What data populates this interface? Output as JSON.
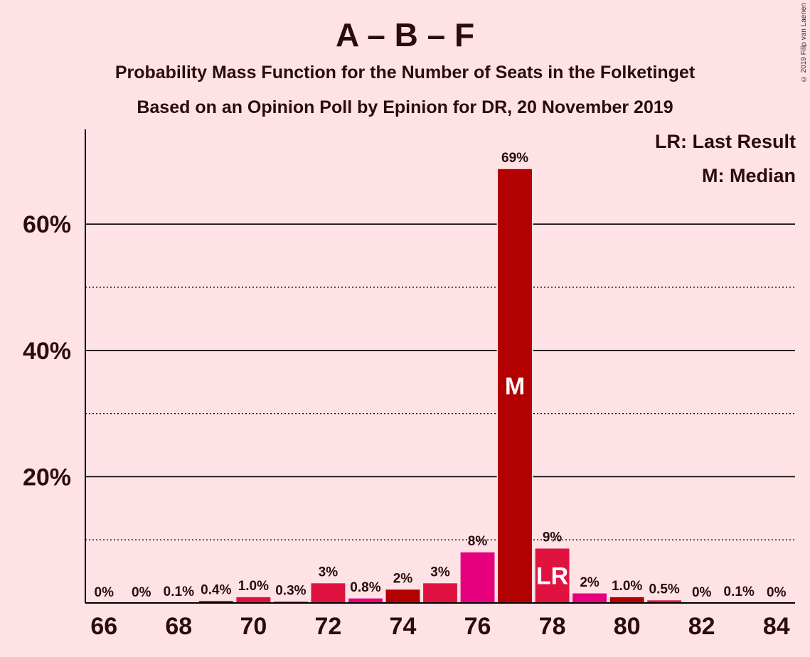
{
  "header": {
    "title": "A – B – F",
    "subtitle": "Probability Mass Function for the Number of Seats in the Folketinget",
    "subtitle2": "Based on an Opinion Poll by Epinion for DR, 20 November 2019",
    "copyright": "© 2019 Filip van Laenen"
  },
  "legend": {
    "last_result": "LR: Last Result",
    "median": "M: Median"
  },
  "colors": {
    "background": "#FFE2E5",
    "dark_red": "#B30000",
    "crimson": "#E0123F",
    "magenta": "#E6007E"
  },
  "chart_data": {
    "type": "bar",
    "title": "A – B – F",
    "xlabel": "",
    "ylabel": "",
    "x": [
      66,
      67,
      68,
      69,
      70,
      71,
      72,
      73,
      74,
      75,
      76,
      77,
      78,
      79,
      80,
      81,
      82,
      83,
      84
    ],
    "values": [
      0,
      0,
      0.1,
      0.4,
      1.0,
      0.3,
      3.2,
      0.8,
      2.2,
      3.2,
      8.1,
      68.8,
      8.7,
      1.6,
      1.0,
      0.5,
      0,
      0.1,
      0
    ],
    "value_labels": [
      "0%",
      "0%",
      "0.1%",
      "0.4%",
      "1.0%",
      "0.3%",
      "3%",
      "0.8%",
      "2%",
      "3%",
      "8%",
      "69%",
      "9%",
      "2%",
      "1.0%",
      "0.5%",
      "0%",
      "0.1%",
      "0%"
    ],
    "bar_colors": [
      "#B30000",
      "#E0123F",
      "#E6007E",
      "#B30000",
      "#E0123F",
      "#E6007E",
      "#E0123F",
      "#E6007E",
      "#B30000",
      "#E0123F",
      "#E6007E",
      "#B30000",
      "#E0123F",
      "#E6007E",
      "#B30000",
      "#E0123F",
      "#E6007E",
      "#B30000",
      "#E0123F"
    ],
    "x_ticks": [
      66,
      68,
      70,
      72,
      74,
      76,
      78,
      80,
      82,
      84
    ],
    "y_ticks": [
      20,
      40,
      60
    ],
    "y_tick_labels": [
      "20%",
      "40%",
      "60%"
    ],
    "y_gridlines_solid": [
      20,
      40,
      60
    ],
    "y_gridlines_dotted": [
      10,
      30,
      50
    ],
    "ylim": [
      0,
      75
    ],
    "xlim": [
      65.5,
      84.5
    ],
    "median": {
      "x": 77,
      "label": "M"
    },
    "last_result": {
      "x": 78,
      "label": "LR"
    },
    "legend_position": "top-right"
  }
}
